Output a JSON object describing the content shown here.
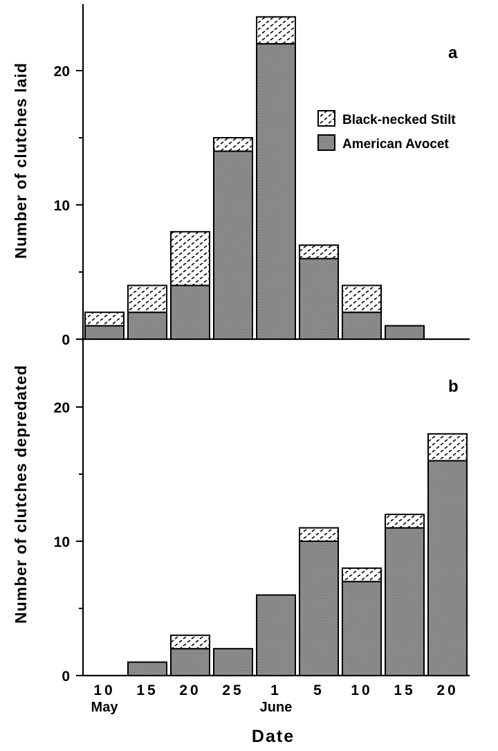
{
  "chart_data": [
    {
      "type": "bar",
      "panel_label": "a",
      "ylabel": "Number of clutches laid",
      "ylim": [
        0,
        24
      ],
      "yticks": [
        "0",
        "10",
        "20"
      ],
      "stacked": true,
      "categories": [
        "10",
        "15",
        "20",
        "25",
        "1",
        "5",
        "10",
        "15",
        "20"
      ],
      "series": [
        {
          "name": "American Avocet",
          "values": [
            1,
            2,
            4,
            14,
            22,
            6,
            2,
            1,
            0
          ]
        },
        {
          "name": "Black-necked Stilt",
          "values": [
            1,
            2,
            4,
            1,
            2,
            1,
            2,
            0,
            0
          ]
        }
      ],
      "legend": {
        "placement": "top-right",
        "items": [
          "Black-necked Stilt",
          "American Avocet"
        ]
      }
    },
    {
      "type": "bar",
      "panel_label": "b",
      "ylabel": "Number of clutches depredated",
      "xlabel": "Date",
      "ylim": [
        0,
        24
      ],
      "yticks": [
        "0",
        "10",
        "20"
      ],
      "stacked": true,
      "categories": [
        "10",
        "15",
        "20",
        "25",
        "1",
        "5",
        "10",
        "15",
        "20"
      ],
      "month_labels": [
        {
          "text": "May",
          "at_category": 0
        },
        {
          "text": "June",
          "at_category": 4
        }
      ],
      "series": [
        {
          "name": "American Avocet",
          "values": [
            0,
            1,
            2,
            2,
            6,
            10,
            7,
            11,
            16
          ]
        },
        {
          "name": "Black-necked Stilt",
          "values": [
            0,
            0,
            1,
            0,
            0,
            1,
            1,
            1,
            2
          ]
        }
      ]
    }
  ],
  "colors": {
    "avocet_fill": "#8a8a8a",
    "stilt_fill": "#ffffff",
    "outline": "#000000"
  }
}
